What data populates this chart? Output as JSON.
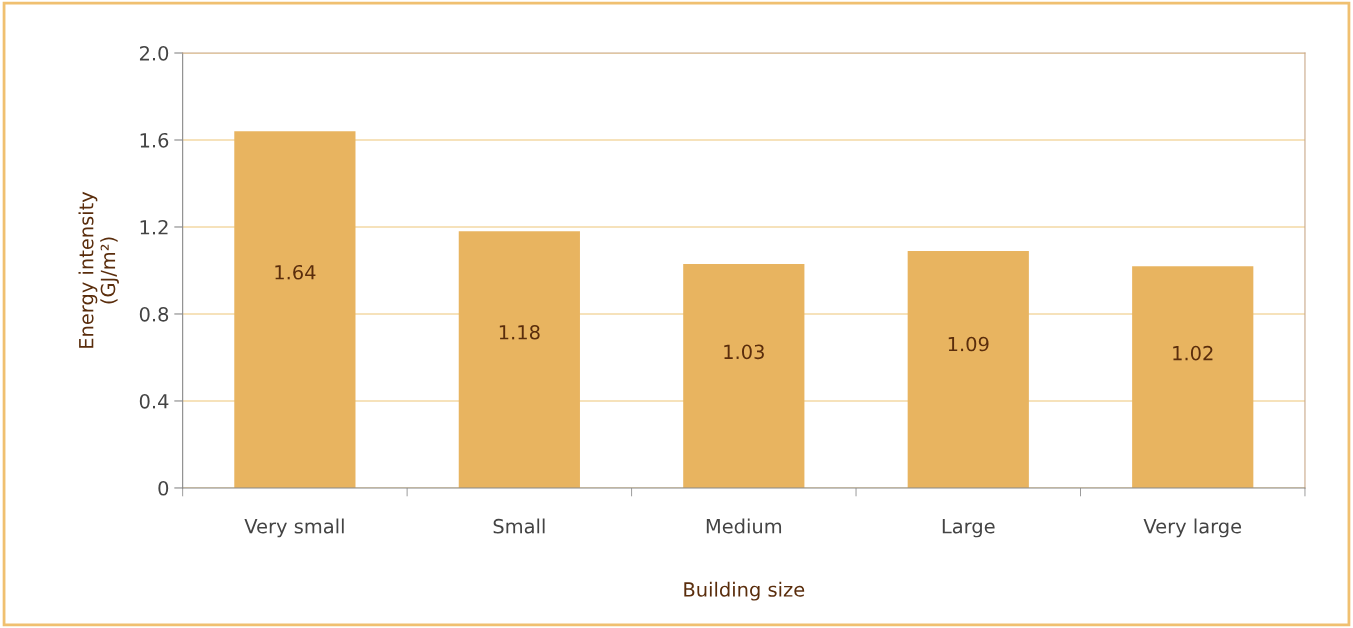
{
  "chart_data": {
    "type": "bar",
    "xlabel": "Building size",
    "ylabel": "Energy intensity\n(GJ/m²)",
    "categories": [
      "Very small",
      "Small",
      "Medium",
      "Large",
      "Very large"
    ],
    "values": [
      1.64,
      1.18,
      1.03,
      1.09,
      1.02
    ],
    "color": "#e8b460",
    "ylim": [
      0,
      2.0
    ],
    "yticks": [
      0,
      0.4,
      0.8,
      1.2,
      1.6,
      {
        "value": 2.0,
        "label": "2.0"
      }
    ],
    "grid": "y",
    "data_labels": true
  }
}
